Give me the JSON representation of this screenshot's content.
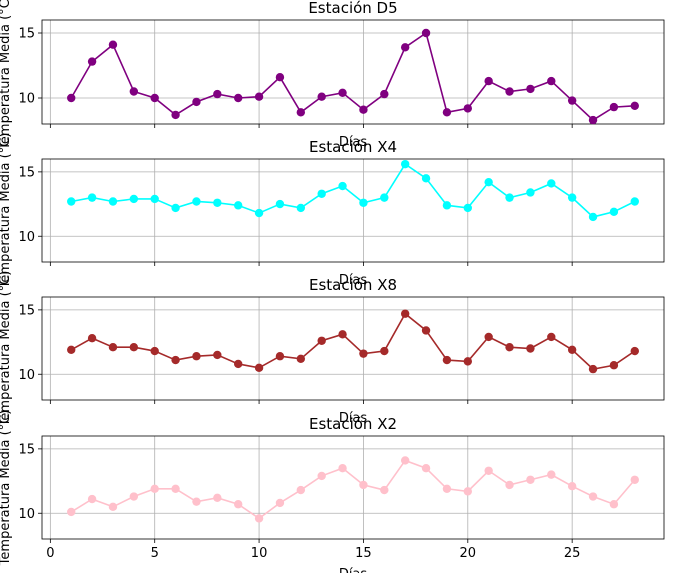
{
  "chart_data": [
    {
      "type": "line",
      "title": "Estación D5",
      "xlabel": "Días",
      "ylabel": "Temperatura Media (°C)",
      "color": "#800080",
      "x": [
        1,
        2,
        3,
        4,
        5,
        6,
        7,
        8,
        9,
        10,
        11,
        12,
        13,
        14,
        15,
        16,
        17,
        18,
        19,
        20,
        21,
        22,
        23,
        24,
        25,
        26,
        27,
        28
      ],
      "values": [
        10.0,
        12.8,
        14.1,
        10.5,
        10.0,
        8.7,
        9.7,
        10.3,
        10.0,
        10.1,
        11.6,
        8.9,
        10.1,
        10.4,
        9.1,
        10.3,
        13.9,
        15.0,
        8.9,
        9.2,
        11.3,
        10.5,
        10.7,
        11.3,
        9.8,
        8.3,
        9.3,
        9.4
      ],
      "ylim": [
        8,
        16
      ],
      "yticks": [
        10,
        15
      ],
      "grid": true
    },
    {
      "type": "line",
      "title": "Estación X4",
      "xlabel": "Días",
      "ylabel": "Temperatura Media (°C)",
      "color": "#00ffff",
      "x": [
        1,
        2,
        3,
        4,
        5,
        6,
        7,
        8,
        9,
        10,
        11,
        12,
        13,
        14,
        15,
        16,
        17,
        18,
        19,
        20,
        21,
        22,
        23,
        24,
        25,
        26,
        27,
        28
      ],
      "values": [
        12.7,
        13.0,
        12.7,
        12.9,
        12.9,
        12.2,
        12.7,
        12.6,
        12.4,
        11.8,
        12.5,
        12.2,
        13.3,
        13.9,
        12.6,
        13.0,
        15.6,
        14.5,
        12.4,
        12.2,
        14.2,
        13.0,
        13.4,
        14.1,
        13.0,
        11.5,
        11.9,
        12.7
      ],
      "ylim": [
        8,
        16
      ],
      "yticks": [
        10,
        15
      ],
      "grid": true
    },
    {
      "type": "line",
      "title": "Estación X8",
      "xlabel": "Días",
      "ylabel": "Temperatura Media (°C)",
      "color": "#a52a2a",
      "x": [
        1,
        2,
        3,
        4,
        5,
        6,
        7,
        8,
        9,
        10,
        11,
        12,
        13,
        14,
        15,
        16,
        17,
        18,
        19,
        20,
        21,
        22,
        23,
        24,
        25,
        26,
        27,
        28
      ],
      "values": [
        11.9,
        12.8,
        12.1,
        12.1,
        11.8,
        11.1,
        11.4,
        11.5,
        10.8,
        10.5,
        11.4,
        11.2,
        12.6,
        13.1,
        11.6,
        11.8,
        14.7,
        13.4,
        11.1,
        11.0,
        12.9,
        12.1,
        12.0,
        12.9,
        11.9,
        10.4,
        10.7,
        11.8
      ],
      "ylim": [
        8,
        16
      ],
      "yticks": [
        10,
        15
      ],
      "grid": true
    },
    {
      "type": "line",
      "title": "Estación X2",
      "xlabel": "Días",
      "ylabel": "Temperatura Media (°C)",
      "color": "#ffc0cb",
      "x": [
        1,
        2,
        3,
        4,
        5,
        6,
        7,
        8,
        9,
        10,
        11,
        12,
        13,
        14,
        15,
        16,
        17,
        18,
        19,
        20,
        21,
        22,
        23,
        24,
        25,
        26,
        27,
        28
      ],
      "values": [
        10.1,
        11.1,
        10.5,
        11.3,
        11.9,
        11.9,
        10.9,
        11.2,
        10.7,
        9.6,
        10.8,
        11.8,
        12.9,
        13.5,
        12.2,
        11.8,
        14.1,
        13.5,
        11.9,
        11.7,
        13.3,
        12.2,
        12.6,
        13.0,
        12.1,
        11.3,
        10.7,
        12.6
      ],
      "ylim": [
        8,
        16
      ],
      "yticks": [
        10,
        15
      ],
      "grid": true
    }
  ],
  "shared_xaxis": {
    "xlim": [
      -0.4,
      29.4
    ],
    "xticks": [
      0,
      5,
      10,
      15,
      20,
      25
    ],
    "tick_labels_on_last_only": true
  }
}
